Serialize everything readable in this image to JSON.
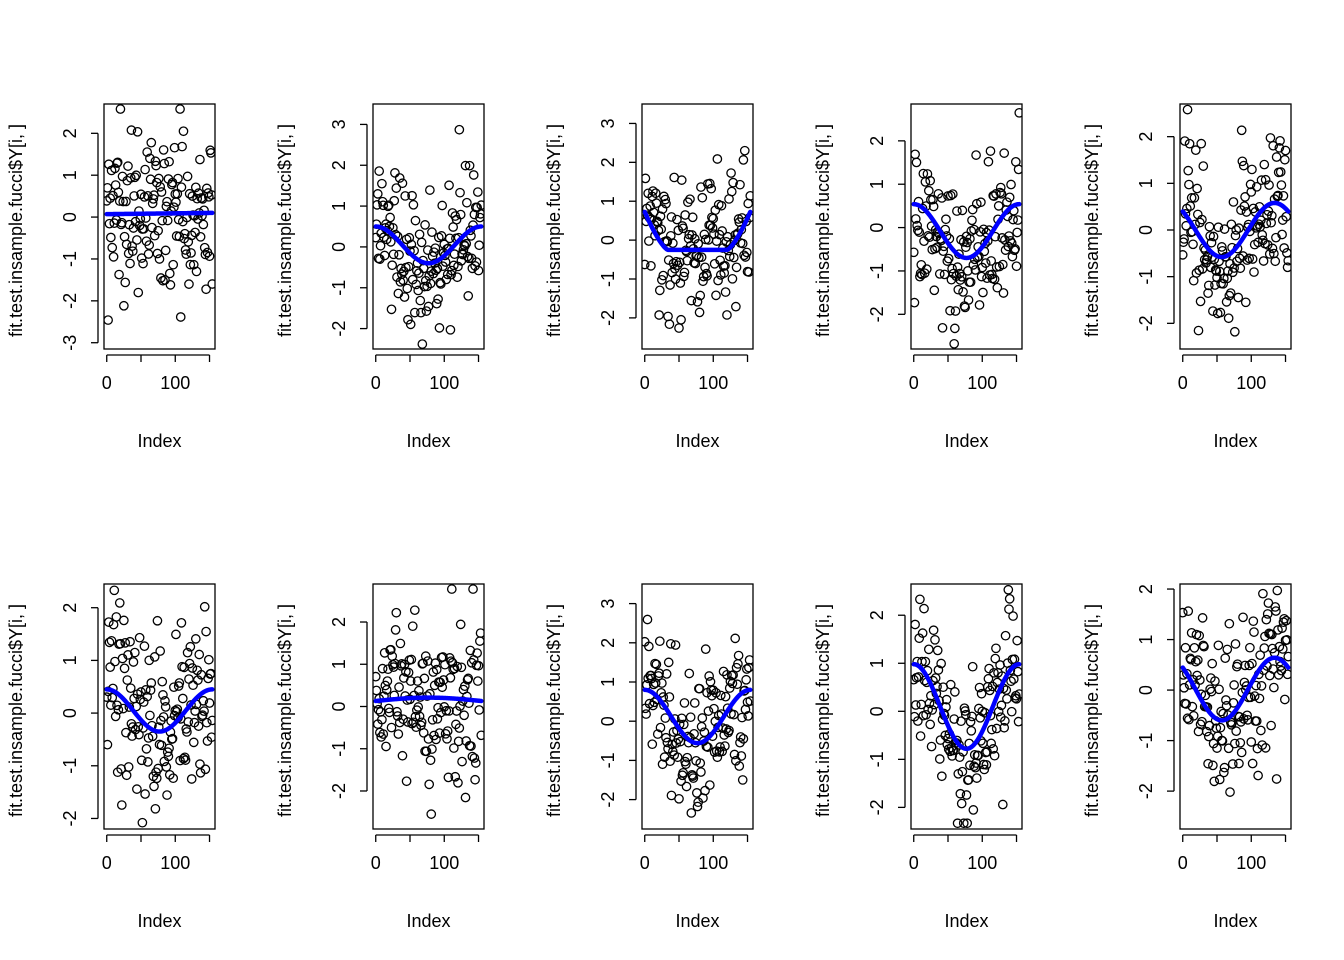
{
  "figure": {
    "panel_count": 10,
    "layout": "2 rows x 5 columns"
  },
  "colors": {
    "points": "#000000",
    "fit_line": "#0000ff",
    "axes": "#000000",
    "background": "#ffffff"
  },
  "chart_data": [
    {
      "type": "scatter",
      "panel": 1,
      "xlabel": "Index",
      "ylabel": "fit.test.insample.fucci$Y[i, ]",
      "xlim": [
        -4,
        158
      ],
      "ylim": [
        -3.15,
        2.7
      ],
      "xticks": [
        0,
        100
      ],
      "yticks": [
        -3,
        -2,
        -1,
        0,
        1,
        2
      ],
      "n_points": 155,
      "fit_shape": "flat",
      "fit_level": 0.07,
      "fit_amplitude": 0.03,
      "fit_peak_index": 140,
      "noise_sd": 1.0
    },
    {
      "type": "scatter",
      "panel": 2,
      "xlabel": "Index",
      "ylabel": "fit.test.insample.fucci$Y[i, ]",
      "xlim": [
        -4,
        158
      ],
      "ylim": [
        -2.5,
        3.5
      ],
      "xticks": [
        0,
        100
      ],
      "yticks": [
        -2,
        -1,
        0,
        1,
        2,
        3
      ],
      "n_points": 155,
      "fit_shape": "single-dip",
      "fit_level": 0.05,
      "fit_amplitude": 0.45,
      "fit_peak_index": 0,
      "noise_sd": 0.85
    },
    {
      "type": "scatter",
      "panel": 3,
      "xlabel": "Index",
      "ylabel": "fit.test.insample.fucci$Y[i, ]",
      "xlim": [
        -4,
        158
      ],
      "ylim": [
        -2.8,
        3.5
      ],
      "xticks": [
        0,
        100
      ],
      "yticks": [
        -2,
        -1,
        0,
        1,
        2,
        3
      ],
      "n_points": 155,
      "fit_shape": "flat-bottom",
      "fit_level": 0.0,
      "fit_amplitude": 0.75,
      "fit_peak_index": 0,
      "noise_sd": 0.9
    },
    {
      "type": "scatter",
      "panel": 4,
      "xlabel": "Index",
      "ylabel": "fit.test.insample.fucci$Y[i, ]",
      "xlim": [
        -4,
        158
      ],
      "ylim": [
        -2.8,
        2.85
      ],
      "xticks": [
        0,
        100
      ],
      "yticks": [
        -2,
        -1,
        0,
        1,
        2
      ],
      "n_points": 155,
      "fit_shape": "single-dip",
      "fit_level": -0.08,
      "fit_amplitude": 0.62,
      "fit_peak_index": 0,
      "noise_sd": 0.85
    },
    {
      "type": "scatter",
      "panel": 5,
      "xlabel": "Index",
      "ylabel": "fit.test.insample.fucci$Y[i, ]",
      "xlim": [
        -4,
        158
      ],
      "ylim": [
        -2.55,
        2.7
      ],
      "xticks": [
        0,
        100
      ],
      "yticks": [
        -2,
        -1,
        0,
        1,
        2
      ],
      "n_points": 155,
      "fit_shape": "dip-then-peak",
      "fit_level": 0.0,
      "fit_amplitude": 0.58,
      "fit_peak_index": 125,
      "noise_sd": 0.85
    },
    {
      "type": "scatter",
      "panel": 6,
      "xlabel": "Index",
      "ylabel": "fit.test.insample.fucci$Y[i, ]",
      "xlim": [
        -4,
        158
      ],
      "ylim": [
        -2.2,
        2.45
      ],
      "xticks": [
        0,
        100
      ],
      "yticks": [
        -2,
        -1,
        0,
        1,
        2
      ],
      "n_points": 155,
      "fit_shape": "single-dip",
      "fit_level": 0.05,
      "fit_amplitude": 0.4,
      "fit_peak_index": 0,
      "noise_sd": 0.9
    },
    {
      "type": "scatter",
      "panel": 7,
      "xlabel": "Index",
      "ylabel": "fit.test.insample.fucci$Y[i, ]",
      "xlim": [
        -4,
        158
      ],
      "ylim": [
        -2.9,
        2.9
      ],
      "xticks": [
        0,
        100
      ],
      "yticks": [
        -2,
        -1,
        0,
        1,
        2
      ],
      "n_points": 155,
      "fit_shape": "broad-hump",
      "fit_level": 0.13,
      "fit_amplitude": 0.08,
      "fit_peak_index": 90,
      "noise_sd": 0.95
    },
    {
      "type": "scatter",
      "panel": 8,
      "xlabel": "Index",
      "ylabel": "fit.test.insample.fucci$Y[i, ]",
      "xlim": [
        -4,
        158
      ],
      "ylim": [
        -2.75,
        3.5
      ],
      "xticks": [
        0,
        100
      ],
      "yticks": [
        -2,
        -1,
        0,
        1,
        2,
        3
      ],
      "n_points": 155,
      "fit_shape": "single-dip",
      "fit_level": 0.12,
      "fit_amplitude": 0.68,
      "fit_peak_index": 0,
      "noise_sd": 0.9
    },
    {
      "type": "scatter",
      "panel": 9,
      "xlabel": "Index",
      "ylabel": "fit.test.insample.fucci$Y[i, ]",
      "xlim": [
        -4,
        158
      ],
      "ylim": [
        -2.45,
        2.65
      ],
      "xticks": [
        0,
        100
      ],
      "yticks": [
        -2,
        -1,
        0,
        1,
        2
      ],
      "n_points": 155,
      "fit_shape": "single-dip",
      "fit_level": 0.1,
      "fit_amplitude": 0.88,
      "fit_peak_index": 0,
      "noise_sd": 0.8
    },
    {
      "type": "scatter",
      "panel": 10,
      "xlabel": "Index",
      "ylabel": "fit.test.insample.fucci$Y[i, ]",
      "xlim": [
        -4,
        158
      ],
      "ylim": [
        -2.75,
        2.1
      ],
      "xticks": [
        0,
        100
      ],
      "yticks": [
        -2,
        -1,
        0,
        1,
        2
      ],
      "n_points": 155,
      "fit_shape": "dip-then-peak",
      "fit_level": 0.02,
      "fit_amplitude": 0.62,
      "fit_peak_index": 125,
      "noise_sd": 0.85
    }
  ]
}
